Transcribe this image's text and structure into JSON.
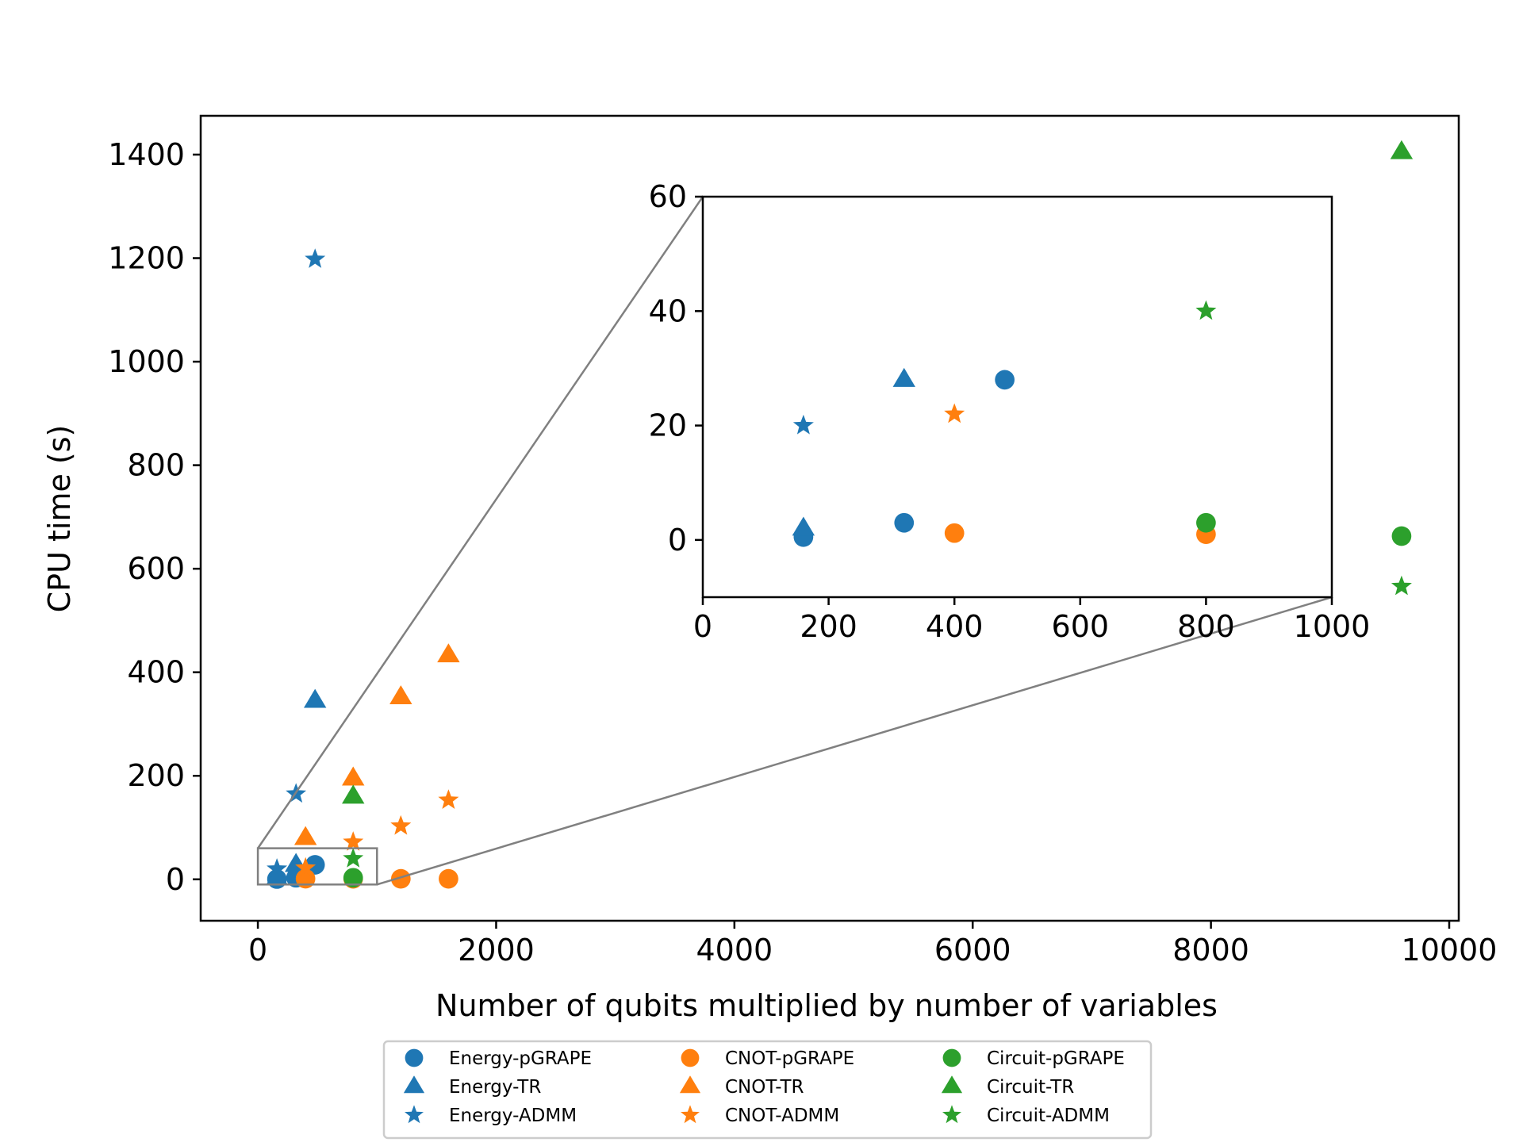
{
  "chart_data": {
    "type": "scatter",
    "title": "",
    "xlabel": "Number of qubits multiplied by number of variables",
    "ylabel": "CPU time (s)",
    "xlim": [
      -480,
      10080
    ],
    "ylim": [
      -80,
      1475
    ],
    "xticks": [
      "0",
      "2000",
      "4000",
      "6000",
      "8000",
      "10000"
    ],
    "yticks": [
      "0",
      "200",
      "400",
      "600",
      "800",
      "1000",
      "1200",
      "1400"
    ],
    "grid": false,
    "legend_position": "below plot",
    "series": [
      {
        "name": "Energy-pGRAPE",
        "color": "#1f77b4",
        "marker": "circle",
        "points": [
          [
            160,
            0.5
          ],
          [
            320,
            3
          ],
          [
            480,
            28
          ]
        ]
      },
      {
        "name": "Energy-TR",
        "color": "#1f77b4",
        "marker": "triangle",
        "points": [
          [
            160,
            2
          ],
          [
            320,
            28
          ],
          [
            480,
            345
          ]
        ]
      },
      {
        "name": "Energy-ADMM",
        "color": "#1f77b4",
        "marker": "star",
        "points": [
          [
            160,
            20
          ],
          [
            320,
            165
          ],
          [
            480,
            1198
          ]
        ]
      },
      {
        "name": "CNOT-pGRAPE",
        "color": "#ff7f0e",
        "marker": "circle",
        "points": [
          [
            400,
            1.2
          ],
          [
            800,
            1
          ],
          [
            1200,
            1
          ],
          [
            1600,
            1
          ]
        ]
      },
      {
        "name": "CNOT-TR",
        "color": "#ff7f0e",
        "marker": "triangle",
        "points": [
          [
            400,
            80
          ],
          [
            800,
            195
          ],
          [
            1200,
            352
          ],
          [
            1600,
            433
          ]
        ]
      },
      {
        "name": "CNOT-ADMM",
        "color": "#ff7f0e",
        "marker": "star",
        "points": [
          [
            400,
            22
          ],
          [
            800,
            72
          ],
          [
            1200,
            103
          ],
          [
            1600,
            153
          ]
        ]
      },
      {
        "name": "Circuit-pGRAPE",
        "color": "#2ca02c",
        "marker": "circle",
        "points": [
          [
            800,
            3
          ],
          [
            9600,
            663
          ]
        ]
      },
      {
        "name": "Circuit-TR",
        "color": "#2ca02c",
        "marker": "triangle",
        "points": [
          [
            800,
            160
          ],
          [
            9600,
            1405
          ]
        ]
      },
      {
        "name": "Circuit-ADMM",
        "color": "#2ca02c",
        "marker": "star",
        "points": [
          [
            800,
            40
          ],
          [
            9600,
            566
          ]
        ]
      }
    ],
    "inset": {
      "xlim": [
        0,
        1000
      ],
      "ylim": [
        -10,
        60
      ],
      "xticks": [
        "0",
        "200",
        "400",
        "600",
        "800",
        "1000"
      ],
      "yticks": [
        "0",
        "20",
        "40",
        "60"
      ]
    }
  },
  "legend": {
    "col1": [
      "Energy-pGRAPE",
      "Energy-TR",
      "Energy-ADMM"
    ],
    "col2": [
      "CNOT-pGRAPE",
      "CNOT-TR",
      "CNOT-ADMM"
    ],
    "col3": [
      "Circuit-pGRAPE",
      "Circuit-TR",
      "Circuit-ADMM"
    ]
  }
}
